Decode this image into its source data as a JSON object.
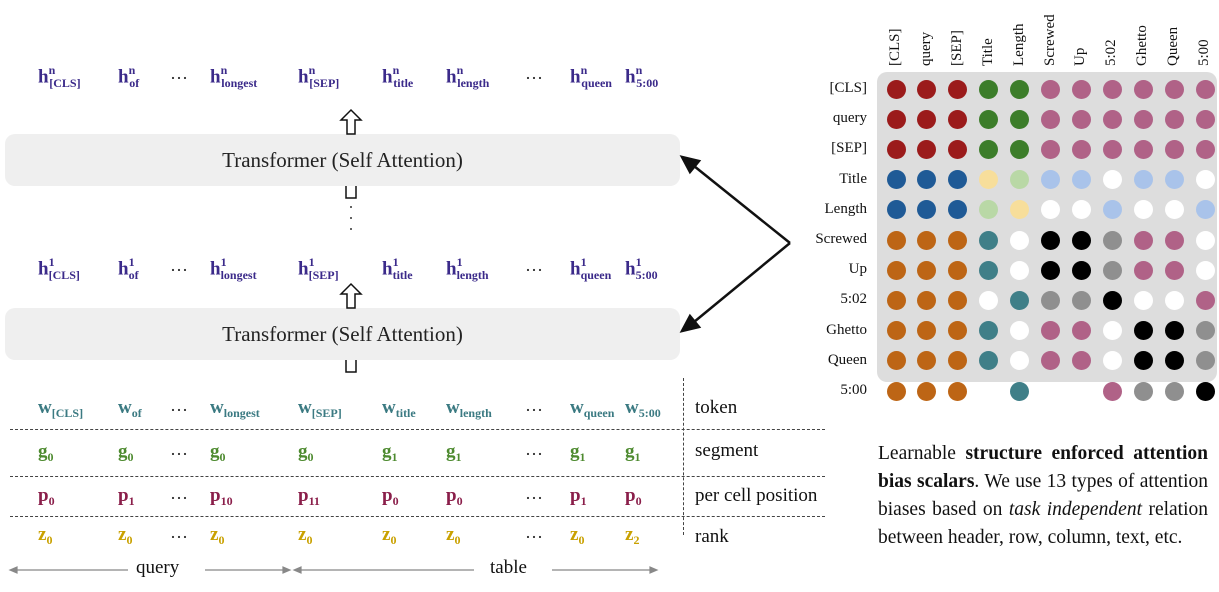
{
  "diagram": {
    "hn_row": [
      {
        "base": "h",
        "sup": "n",
        "sub": "[CLS]"
      },
      {
        "base": "h",
        "sup": "n",
        "sub": "of"
      },
      {
        "dots": "···"
      },
      {
        "base": "h",
        "sup": "n",
        "sub": "longest"
      },
      {
        "base": "h",
        "sup": "n",
        "sub": "[SEP]"
      },
      {
        "base": "h",
        "sup": "n",
        "sub": "title"
      },
      {
        "base": "h",
        "sup": "n",
        "sub": "length"
      },
      {
        "dots": "···"
      },
      {
        "base": "h",
        "sup": "n",
        "sub": "queen"
      },
      {
        "base": "h",
        "sup": "n",
        "sub": "5:00"
      }
    ],
    "h1_row": [
      {
        "base": "h",
        "sup": "1",
        "sub": "[CLS]"
      },
      {
        "base": "h",
        "sup": "1",
        "sub": "of"
      },
      {
        "dots": "···"
      },
      {
        "base": "h",
        "sup": "1",
        "sub": "longest"
      },
      {
        "base": "h",
        "sup": "1",
        "sub": "[SEP]"
      },
      {
        "base": "h",
        "sup": "1",
        "sub": "title"
      },
      {
        "base": "h",
        "sup": "1",
        "sub": "length"
      },
      {
        "dots": "···"
      },
      {
        "base": "h",
        "sup": "1",
        "sub": "queen"
      },
      {
        "base": "h",
        "sup": "1",
        "sub": "5:00"
      }
    ],
    "transformer_top_label": "Transformer (Self Attention)",
    "transformer_bottom_label": "Transformer (Self Attention)",
    "embed_rows": [
      {
        "name": "token",
        "label": "token",
        "items": [
          {
            "base": "w",
            "sub": "[CLS]"
          },
          {
            "base": "w",
            "sub": "of"
          },
          {
            "dots": "···"
          },
          {
            "base": "w",
            "sub": "longest"
          },
          {
            "base": "w",
            "sub": "[SEP]"
          },
          {
            "base": "w",
            "sub": "title"
          },
          {
            "base": "w",
            "sub": "length"
          },
          {
            "dots": "···"
          },
          {
            "base": "w",
            "sub": "queen"
          },
          {
            "base": "w",
            "sub": "5:00"
          }
        ]
      },
      {
        "name": "segment",
        "label": "segment",
        "items": [
          {
            "base": "g",
            "sub": "0"
          },
          {
            "base": "g",
            "sub": "0"
          },
          {
            "dots": "···"
          },
          {
            "base": "g",
            "sub": "0"
          },
          {
            "base": "g",
            "sub": "0"
          },
          {
            "base": "g",
            "sub": "1"
          },
          {
            "base": "g",
            "sub": "1"
          },
          {
            "dots": "···"
          },
          {
            "base": "g",
            "sub": "1"
          },
          {
            "base": "g",
            "sub": "1"
          }
        ]
      },
      {
        "name": "position",
        "label": "per cell position",
        "items": [
          {
            "base": "p",
            "sub": "0"
          },
          {
            "base": "p",
            "sub": "1"
          },
          {
            "dots": "···"
          },
          {
            "base": "p",
            "sub": "10"
          },
          {
            "base": "p",
            "sub": "11"
          },
          {
            "base": "p",
            "sub": "0"
          },
          {
            "base": "p",
            "sub": "0"
          },
          {
            "dots": "···"
          },
          {
            "base": "p",
            "sub": "1"
          },
          {
            "base": "p",
            "sub": "0"
          }
        ]
      },
      {
        "name": "rank",
        "label": "rank",
        "items": [
          {
            "base": "z",
            "sub": "0"
          },
          {
            "base": "z",
            "sub": "0"
          },
          {
            "dots": "···"
          },
          {
            "base": "z",
            "sub": "0"
          },
          {
            "base": "z",
            "sub": "0"
          },
          {
            "base": "z",
            "sub": "0"
          },
          {
            "base": "z",
            "sub": "0"
          },
          {
            "dots": "···"
          },
          {
            "base": "z",
            "sub": "0"
          },
          {
            "base": "z",
            "sub": "2"
          }
        ]
      }
    ],
    "axis_query": "query",
    "axis_table": "table"
  },
  "matrix": {
    "col_labels": [
      "[CLS]",
      "query",
      "[SEP]",
      "Title",
      "Length",
      "Screwed",
      "Up",
      "5:02",
      "Ghetto",
      "Queen",
      "5:00"
    ],
    "row_labels": [
      "[CLS]",
      "query",
      "[SEP]",
      "Title",
      "Length",
      "Screwed",
      "Up",
      "5:02",
      "Ghetto",
      "Queen",
      "5:00"
    ],
    "palette": {
      "R": "#9b1b1b",
      "G": "#3c7d2a",
      "P": "#b06287",
      "B": "#1f5a96",
      "Y": "#f7de9b",
      "L": "#b9d8a6",
      "S": "#a9c3ea",
      "O": "#bd6515",
      "T": "#3f7f88",
      "W": "#ffffff",
      "K": "#000000",
      "A": "#8f8f8f"
    },
    "cells": [
      "RRRGGPPPPPP",
      "RRRGGPPPPPP",
      "RRRGGPPPPPP",
      "BBBYLSSWSSW",
      "BBBLYWWSWWS",
      "OOOTWKKAPPW",
      "OOOTWKKAPPW",
      "OOOWTAAKWWP",
      "OOOTWPPWKKA",
      "OOOTWPPWKKA",
      "OOOWTWWPAAK"
    ]
  },
  "caption": {
    "t1": "Learnable ",
    "b1": "structure enforced attention bias scalars",
    "t2": ". We use 13 types of attention biases based on ",
    "i1": "task independent",
    "t3": " relation between header, row, column, text, etc."
  }
}
